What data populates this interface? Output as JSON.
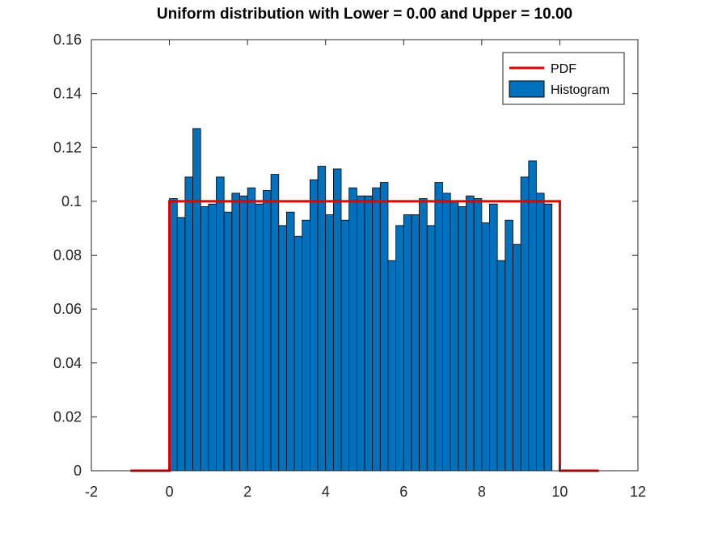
{
  "chart_data": {
    "type": "bar",
    "title": "Uniform distribution with Lower = 0.00 and Upper = 10.00",
    "xlabel": "",
    "ylabel": "",
    "xlim": [
      -2,
      12
    ],
    "ylim": [
      0,
      0.16
    ],
    "x_ticks": [
      "-2",
      "0",
      "2",
      "4",
      "6",
      "8",
      "10",
      "12"
    ],
    "y_ticks": [
      "0",
      "0.02",
      "0.04",
      "0.06",
      "0.08",
      "0.1",
      "0.12",
      "0.14",
      "0.16"
    ],
    "grid": false,
    "legend_position": "top-right",
    "histogram": {
      "name": "Histogram",
      "color": "#0072BD",
      "bin_start": 0,
      "bin_width": 0.2,
      "values": [
        0.101,
        0.094,
        0.109,
        0.127,
        0.098,
        0.099,
        0.109,
        0.096,
        0.103,
        0.102,
        0.105,
        0.099,
        0.104,
        0.11,
        0.091,
        0.096,
        0.087,
        0.093,
        0.108,
        0.113,
        0.095,
        0.112,
        0.093,
        0.105,
        0.102,
        0.102,
        0.105,
        0.107,
        0.078,
        0.091,
        0.095,
        0.095,
        0.101,
        0.091,
        0.107,
        0.103,
        0.1,
        0.098,
        0.102,
        0.101,
        0.092,
        0.099,
        0.078,
        0.093,
        0.084,
        0.109,
        0.115,
        0.103,
        0.099
      ]
    },
    "pdf": {
      "name": "PDF",
      "color": "#E00000",
      "x": [
        -1,
        0,
        0,
        10,
        10,
        11
      ],
      "y": [
        0,
        0,
        0.1,
        0.1,
        0,
        0
      ]
    }
  }
}
